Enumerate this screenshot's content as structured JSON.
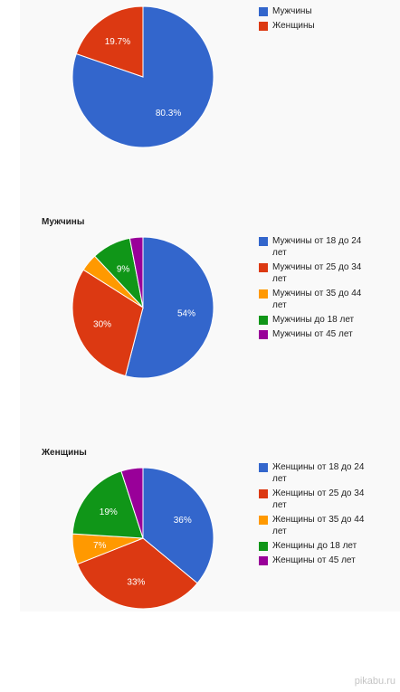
{
  "chart_data": [
    {
      "type": "pie",
      "title": "",
      "categories": [
        "Мужчины",
        "Женщины"
      ],
      "values": [
        80.3,
        19.7
      ],
      "labels": [
        "80.3%",
        "19.7%"
      ],
      "colors": [
        "#3366cc",
        "#dc3912"
      ],
      "legend": "right"
    },
    {
      "type": "pie",
      "title": "Мужчины",
      "categories": [
        "Мужчины от 18 до 24 лет",
        "Мужчины от 25 до 34 лет",
        "Мужчины от 35 до 44 лет",
        "Мужчины до 18 лет",
        "Мужчины от 45 лет"
      ],
      "values": [
        54,
        30,
        4,
        9,
        3
      ],
      "labels": [
        "54%",
        "30%",
        "",
        "9%",
        ""
      ],
      "colors": [
        "#3366cc",
        "#dc3912",
        "#ff9900",
        "#109618",
        "#990099"
      ],
      "legend": "right"
    },
    {
      "type": "pie",
      "title": "Женщины",
      "categories": [
        "Женщины от 18 до 24 лет",
        "Женщины от 25 до 34 лет",
        "Женщины от 35 до 44 лет",
        "Женщины до 18 лет",
        "Женщины от 45 лет"
      ],
      "values": [
        36,
        33,
        7,
        19,
        5
      ],
      "labels": [
        "36%",
        "33%",
        "7%",
        "19%",
        ""
      ],
      "colors": [
        "#3366cc",
        "#dc3912",
        "#ff9900",
        "#109618",
        "#990099"
      ],
      "legend": "right"
    }
  ],
  "watermark": "pikabu.ru"
}
